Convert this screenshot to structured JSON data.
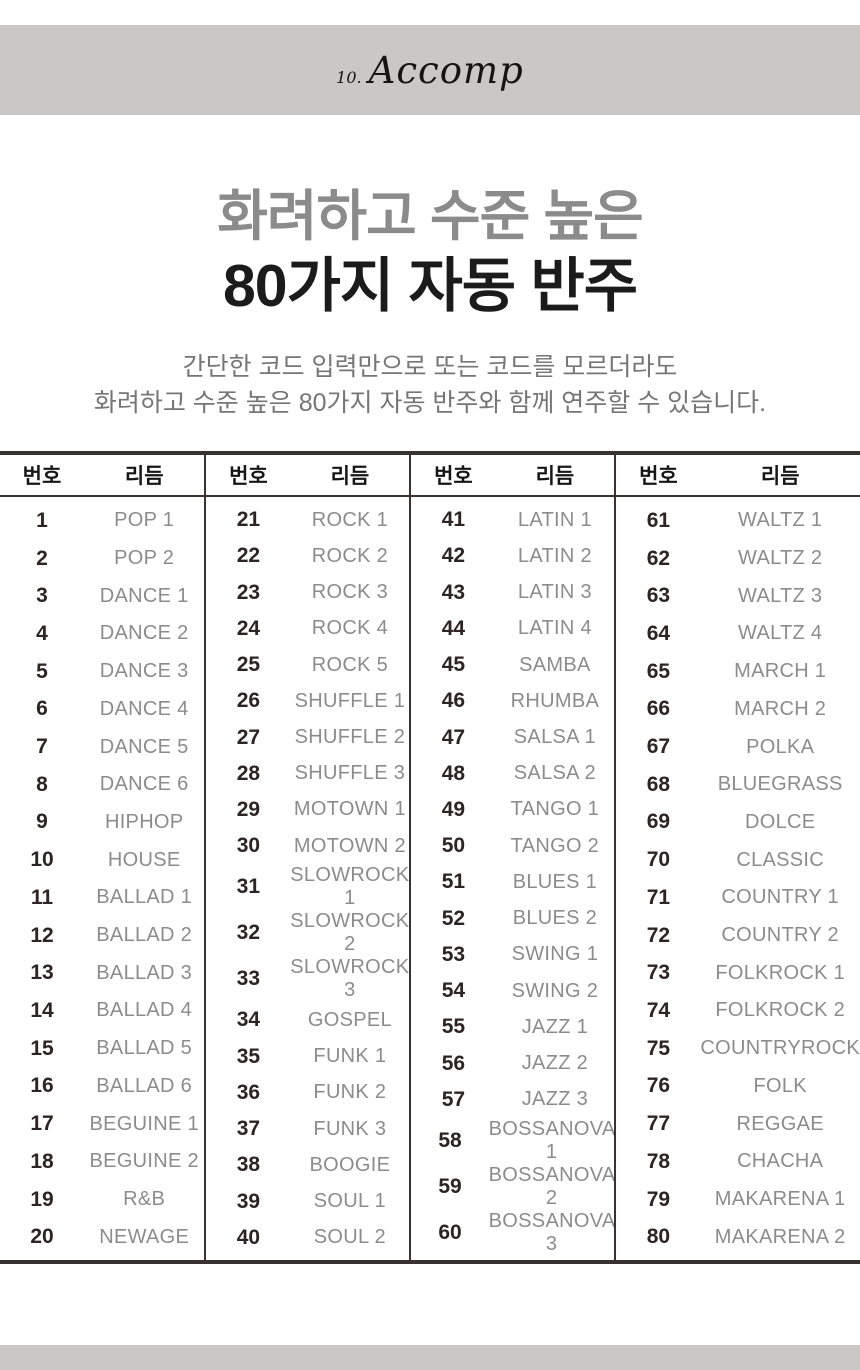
{
  "header_bar": {
    "page_number": "10.",
    "title": "Accomp"
  },
  "hero": {
    "title_line1": "화려하고 수준 높은",
    "title_line2": "80가지 자동 반주",
    "subtitle_line1": "간단한 코드 입력만으로 또는 코드를 모르더라도",
    "subtitle_line2": "화려하고 수준 높은 80가지 자동 반주와 함께 연주할 수 있습니다."
  },
  "rhythm_table": {
    "column_headers": {
      "number": "번호",
      "rhythm": "리듬"
    },
    "groups": [
      {
        "rows": [
          [
            "1",
            "POP 1"
          ],
          [
            "2",
            "POP 2"
          ],
          [
            "3",
            "DANCE 1"
          ],
          [
            "4",
            "DANCE 2"
          ],
          [
            "5",
            "DANCE 3"
          ],
          [
            "6",
            "DANCE 4"
          ],
          [
            "7",
            "DANCE 5"
          ],
          [
            "8",
            "DANCE 6"
          ],
          [
            "9",
            "HIPHOP"
          ],
          [
            "10",
            "HOUSE"
          ],
          [
            "11",
            "BALLAD 1"
          ],
          [
            "12",
            "BALLAD 2"
          ],
          [
            "13",
            "BALLAD 3"
          ],
          [
            "14",
            "BALLAD 4"
          ],
          [
            "15",
            "BALLAD 5"
          ],
          [
            "16",
            "BALLAD 6"
          ],
          [
            "17",
            "BEGUINE 1"
          ],
          [
            "18",
            "BEGUINE 2"
          ],
          [
            "19",
            "R&B"
          ],
          [
            "20",
            "NEWAGE"
          ]
        ]
      },
      {
        "rows": [
          [
            "21",
            "ROCK 1"
          ],
          [
            "22",
            "ROCK 2"
          ],
          [
            "23",
            "ROCK 3"
          ],
          [
            "24",
            "ROCK 4"
          ],
          [
            "25",
            "ROCK 5"
          ],
          [
            "26",
            "SHUFFLE 1"
          ],
          [
            "27",
            "SHUFFLE 2"
          ],
          [
            "28",
            "SHUFFLE 3"
          ],
          [
            "29",
            "MOTOWN 1"
          ],
          [
            "30",
            "MOTOWN 2"
          ],
          [
            "31",
            "SLOWROCK 1"
          ],
          [
            "32",
            "SLOWROCK 2"
          ],
          [
            "33",
            "SLOWROCK 3"
          ],
          [
            "34",
            "GOSPEL"
          ],
          [
            "35",
            "FUNK 1"
          ],
          [
            "36",
            "FUNK 2"
          ],
          [
            "37",
            "FUNK 3"
          ],
          [
            "38",
            "BOOGIE"
          ],
          [
            "39",
            "SOUL 1"
          ],
          [
            "40",
            "SOUL 2"
          ]
        ]
      },
      {
        "rows": [
          [
            "41",
            "LATIN 1"
          ],
          [
            "42",
            "LATIN 2"
          ],
          [
            "43",
            "LATIN 3"
          ],
          [
            "44",
            "LATIN 4"
          ],
          [
            "45",
            "SAMBA"
          ],
          [
            "46",
            "RHUMBA"
          ],
          [
            "47",
            "SALSA 1"
          ],
          [
            "48",
            "SALSA 2"
          ],
          [
            "49",
            "TANGO 1"
          ],
          [
            "50",
            "TANGO 2"
          ],
          [
            "51",
            "BLUES 1"
          ],
          [
            "52",
            "BLUES 2"
          ],
          [
            "53",
            "SWING 1"
          ],
          [
            "54",
            "SWING 2"
          ],
          [
            "55",
            "JAZZ 1"
          ],
          [
            "56",
            "JAZZ 2"
          ],
          [
            "57",
            "JAZZ 3"
          ],
          [
            "58",
            "BOSSANOVA 1"
          ],
          [
            "59",
            "BOSSANOVA 2"
          ],
          [
            "60",
            "BOSSANOVA 3"
          ]
        ]
      },
      {
        "rows": [
          [
            "61",
            "WALTZ 1"
          ],
          [
            "62",
            "WALTZ 2"
          ],
          [
            "63",
            "WALTZ 3"
          ],
          [
            "64",
            "WALTZ 4"
          ],
          [
            "65",
            "MARCH 1"
          ],
          [
            "66",
            "MARCH 2"
          ],
          [
            "67",
            "POLKA"
          ],
          [
            "68",
            "BLUEGRASS"
          ],
          [
            "69",
            "DOLCE"
          ],
          [
            "70",
            "CLASSIC"
          ],
          [
            "71",
            "COUNTRY 1"
          ],
          [
            "72",
            "COUNTRY 2"
          ],
          [
            "73",
            "FOLKROCK 1"
          ],
          [
            "74",
            "FOLKROCK 2"
          ],
          [
            "75",
            "COUNTRYROCK"
          ],
          [
            "76",
            "FOLK"
          ],
          [
            "77",
            "REGGAE"
          ],
          [
            "78",
            "CHACHA"
          ],
          [
            "79",
            "MAKARENA 1"
          ],
          [
            "80",
            "MAKARENA 2"
          ]
        ]
      }
    ]
  },
  "colors": {
    "banner_bg": "#c9c8c6",
    "title_gray": "#8b8b8b",
    "title_black": "#1b1b1b",
    "subtitle_gray": "#767676",
    "table_border": "#3a3231",
    "number_text": "#2c2523",
    "rhythm_text": "#8c8c8c"
  }
}
